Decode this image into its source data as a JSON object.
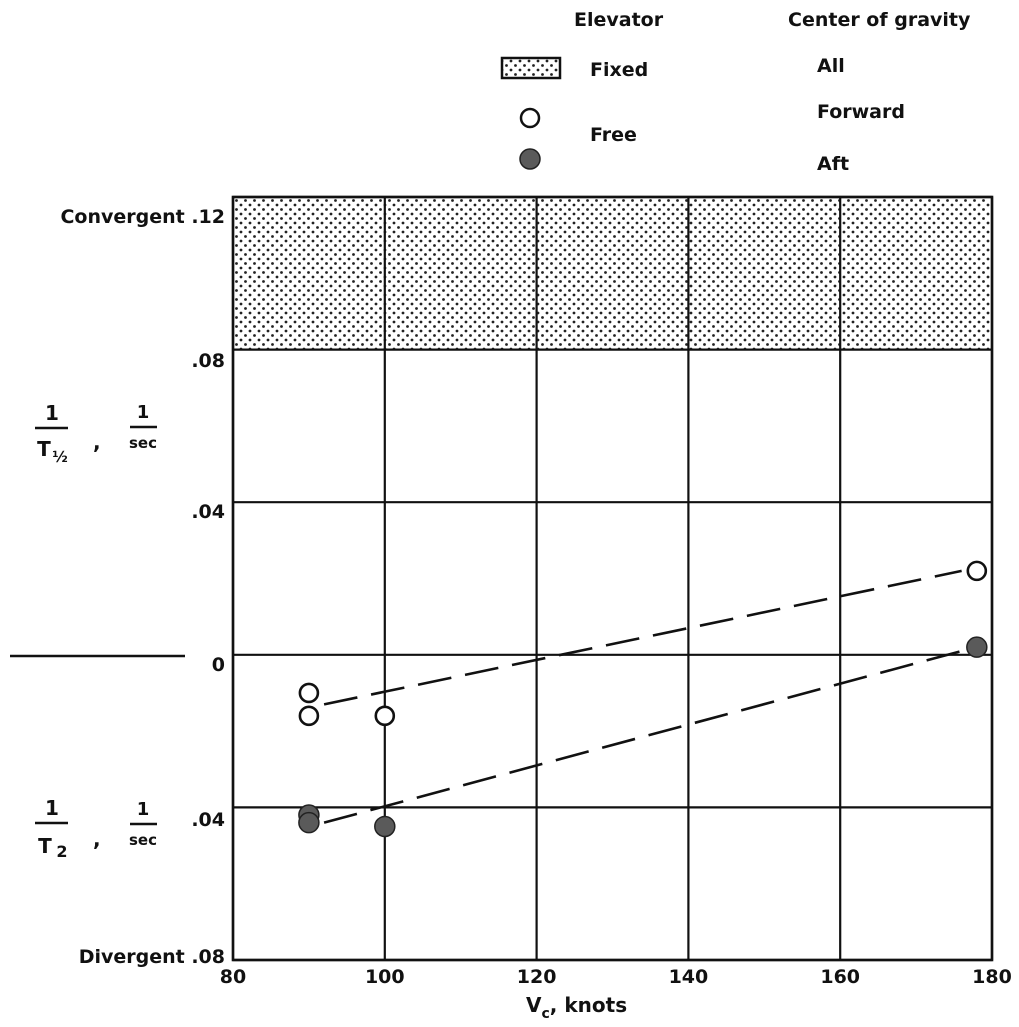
{
  "legend": {
    "elevator_header": "Elevator",
    "cg_header": "Center of gravity",
    "rows": [
      {
        "symbol": "stipple-box",
        "elevator": "Fixed",
        "cg": "All"
      },
      {
        "symbol": "open-circle",
        "elevator": "Free",
        "cg": "Forward"
      },
      {
        "symbol": "filled-circle",
        "elevator": "Free",
        "cg": "Aft"
      }
    ],
    "fixed_label": "Fixed",
    "free_label": "Free",
    "all_label": "All",
    "forward_label": "Forward",
    "aft_label": "Aft"
  },
  "axes": {
    "x_label_main": "V",
    "x_label_sub": "c",
    "x_label_rest": ",  knots",
    "x_ticks": [
      "80",
      "100",
      "120",
      "140",
      "160",
      "180"
    ],
    "y_top_label": "Convergent .12",
    "y_bottom_label": "Divergent .08",
    "y_tick_08_upper": ".08",
    "y_tick_04_upper": ".04",
    "y_tick_0": "0",
    "y_tick_04_lower": ".04",
    "upper_label": {
      "num": "1",
      "den": "T",
      "den_sub": "½",
      "comma": ",",
      "unit_num": "1",
      "unit_den": "sec"
    },
    "lower_label": {
      "num": "1",
      "den": "T",
      "den_sub": "2",
      "comma": ",",
      "unit_num": "1",
      "unit_den": "sec"
    }
  },
  "chart_data": {
    "type": "scatter",
    "x_axis": {
      "label": "Vc, knots",
      "range": [
        80,
        180
      ],
      "ticks": [
        80,
        100,
        120,
        140,
        160,
        180
      ]
    },
    "y_axis": {
      "range": [
        -0.08,
        0.12
      ],
      "note": "positive = convergent (1/T½, 1/sec); negative = divergent (1/T2, 1/sec)",
      "ticks": [
        0.12,
        0.08,
        0.04,
        0,
        -0.04,
        -0.08
      ]
    },
    "grid": true,
    "shaded_region": {
      "series": "Elevator fixed, CG all",
      "y_range": [
        0.08,
        0.12
      ],
      "x_range": [
        80,
        180
      ],
      "pattern": "stipple"
    },
    "series": [
      {
        "name": "Elevator free, CG forward",
        "marker": "open-circle",
        "points": [
          {
            "x": 90,
            "y": -0.01
          },
          {
            "x": 90,
            "y": -0.016
          },
          {
            "x": 100,
            "y": -0.016
          },
          {
            "x": 178,
            "y": 0.022
          }
        ],
        "trend": {
          "style": "dashed",
          "from": {
            "x": 92,
            "y": -0.013
          },
          "to": {
            "x": 176,
            "y": 0.022
          }
        }
      },
      {
        "name": "Elevator free, CG aft",
        "marker": "filled-circle",
        "points": [
          {
            "x": 90,
            "y": -0.042
          },
          {
            "x": 90,
            "y": -0.044
          },
          {
            "x": 100,
            "y": -0.045
          },
          {
            "x": 178,
            "y": 0.002
          }
        ],
        "trend": {
          "style": "dashed",
          "from": {
            "x": 92,
            "y": -0.044
          },
          "to": {
            "x": 176,
            "y": 0.001
          }
        }
      }
    ]
  }
}
